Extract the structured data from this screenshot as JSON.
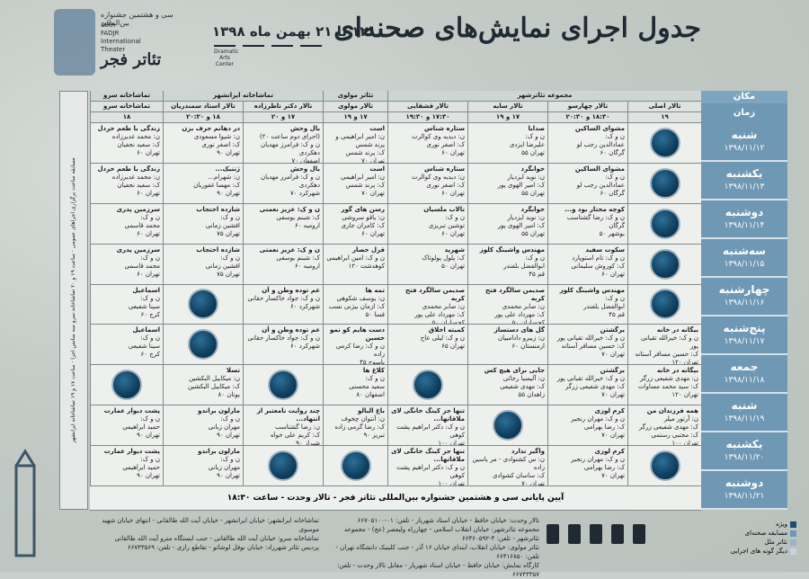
{
  "header": {
    "title": "جدول اجرای نمایش‌های صحنه‌ای",
    "dates": "۱۲ تا ۲۱ بهمن ماه ۱۳۹۸",
    "festival_number": "سی و هشتمین",
    "festival_fa_sub": "جشنواره بین‌المللی",
    "festival_en": [
      "38th",
      "FADJR",
      "International",
      "Theater",
      "Festival"
    ],
    "festival_fa": "تئاتر فجر",
    "partner_logos": [
      "Dramatic Arts Center",
      "",
      "",
      ""
    ]
  },
  "columns": {
    "place_label": "مکان",
    "time_label": "زمان",
    "venues": [
      "مجموعه تئاترشهر",
      "تئاتر مولوی",
      "تماشاخانه ایرانشهر",
      "تماشاخانه سرو"
    ],
    "halls": [
      "تالار اصلی",
      "تالار چهارسو",
      "تالار سایه",
      "تالار قشقایی",
      "تالار مولوی",
      "تالار دکتر ناظرزاده",
      "تالار استاد سمندریان",
      "تماشاخانه سرو"
    ],
    "times": [
      "۱۹",
      "۱۸:۳۰ و ۲۰:۳۰",
      "۱۷ و ۱۹",
      "۱۷:۳۰ و ۱۹:۳۰",
      "۱۷ و ۱۹",
      "۱۷ و ۲۰",
      "۱۸ و ۲۰:۳۰",
      "۱۸"
    ]
  },
  "days": [
    {
      "name": "شنبه",
      "date": "۱۳۹۸/۱۱/۱۲"
    },
    {
      "name": "یکشنبه",
      "date": "۱۳۹۸/۱۱/۱۳"
    },
    {
      "name": "دوشنبه",
      "date": "۱۳۹۸/۱۱/۱۴"
    },
    {
      "name": "سه‌شنبه",
      "date": "۱۳۹۸/۱۱/۱۵"
    },
    {
      "name": "چهارشنبه",
      "date": "۱۳۹۸/۱۱/۱۶"
    },
    {
      "name": "پنج‌شنبه",
      "date": "۱۳۹۸/۱۱/۱۷"
    },
    {
      "name": "جمعه",
      "date": "۱۳۹۸/۱۱/۱۸"
    },
    {
      "name": "شنبه",
      "date": "۱۳۹۸/۱۱/۱۹"
    },
    {
      "name": "یکشنبه",
      "date": "۱۳۹۸/۱۱/۲۰"
    },
    {
      "name": "دوشنبه",
      "date": "۱۳۹۸/۱۱/۲۱"
    }
  ],
  "schedule": [
    [
      {
        "empty": true
      },
      {
        "text": "مشوای الساکین\nن و ک:\nعمادالدین رجب لو\nگرگان ۶۰"
      },
      {
        "text": "صدایا\nن و ک:\nعلیرضا ایزدی\nتهران ۵۵"
      },
      {
        "text": "ستاره شناس\nن: دیدیه وی کوالرت\nک: اصغر نوری\nتهران ۶۰"
      },
      {
        "text": "است\nن: امیر ابراهیمی و پرند شمس\nک: پرند شمس\nتهران ۷۰"
      },
      {
        "text": "بال وحش\n(اجرای دوم ساعت ۲۰)\nن و ک: فرامرز مهدیان دهکردی\nاصفهان ۷۰"
      },
      {
        "text": "در دهانم حرف بزن\nن: شیوا مسعودی\nک: اصغر نوری\nتهران ۹۰"
      },
      {
        "text": "زندگی با طعم خردل\nن: محمد غدیرزاده\nک: سعید نجفیان\nتهران ۶۰"
      }
    ],
    [
      {
        "empty": true
      },
      {
        "text": "مشوای الساکین\nن و ک:\nعمادالدین رجب لو\nگرگان ۶۰"
      },
      {
        "text": "خوابگرد\nن: نوید ایزدیار\nک: امیر الهوی پور\nتهران ۵۵"
      },
      {
        "text": "ستاره شناس\nن: دیدیه وی کوالرت\nک: اصغر نوری\nتهران ۶۰"
      },
      {
        "text": "است\nن: امیر ابراهیمی\nک: پرند شمس\nتهران ۷۰"
      },
      {
        "text": "بال وحش\nن و ک: فرامرز مهدیان دهکردی\nشهرکرد ۷۰"
      },
      {
        "text": "ژتنیک...\nن: شهرام...\nک: مهسا غفوریان\nتهران ۹۰"
      },
      {
        "text": "زندگی با طعم خردل\nن: محمد غدیرزاده\nک: سعید نجفیان\nتهران ۶۰"
      }
    ],
    [
      {
        "empty": true
      },
      {
        "text": "کوچه مختار بود و...\nن و ک: رضا گشتاسب\nگرگان\nبوشهر ۵۰"
      },
      {
        "text": "خوابگرد\nن: نوید ایزدیار\nک: امیر الهوی پور\nتهران ۵۵"
      },
      {
        "text": "تالاب ملسیان\nن و ک:\nتوشین تبریزی\nتهران ۶۰"
      },
      {
        "text": "رسن های گور\nن: یاقو سروشی\nک: کامران جاری\nتهران ۶۰"
      },
      {
        "text": "ن و ک: عزیز نعمتی\nک: شبنم یوسفی\nارومیه ۶۰"
      },
      {
        "text": "شازده احتجاب\nن و ک:\nافشین زمانی\nتهران ۷۵"
      },
      {
        "text": "سرزمین پدری\nن و ک:\nمحمد قاسمی\nتهران ۶۰"
      }
    ],
    [
      {
        "empty": true
      },
      {
        "text": "سکوت سفید\nن و ک: تام استوپارد\nک: کوروش سلیمانی\nتهران ۶۰"
      },
      {
        "text": "مهندس واشینگ کلوز\nن و ک:\nابوالفضل بلفندر\nقم ۴۵"
      },
      {
        "text": "شهرپد\nک: پلول پولوتاک\nتهران ۵۰"
      },
      {
        "text": "قزل حصار\nن و ک: امین ابراهیمی\nکوهدشت ۱۲۰"
      },
      {
        "text": "ن و ک: عزیز نعمتی\nک: شبنم یوسفی\nارومیه ۶۰"
      },
      {
        "text": "شازده احتجاب\nن و ک:\nافشین زمانی\nتهران ۷۵"
      },
      {
        "text": "سرزمین پدری\nن و ک:\nمحمد قاسمی\nتهران ۶۰"
      }
    ],
    [
      {
        "empty": true
      },
      {
        "text": "مهندس واشینگ کلوز\nن و ک:\nابوالفضل بلفندر\nقم ۴۵"
      },
      {
        "text": "صدیمن سالگرد فتح کربه\nن: صابر محمدی\nک: مهرداد علی پور\nکچساران ۵۰"
      },
      {
        "text": "صدیمن سالگرد فتح کربه\nن: صابر محمدی\nک: مهرداد علی پور\nکچساران ۵۰"
      },
      {
        "text": "تمه ها\nن: یوسف شکوهی\nک: ازمان بیژنی نسب\nفسا ۵۰"
      },
      {
        "text": "غم توده وطن و اَن\nن و ک: جواد خاکسار حقانی\nشهرکرد ۶۰"
      },
      {
        "empty": true
      },
      {
        "text": "اسماعیل\nن و ک:\nسینا شفیعی\nکرج ۶۰"
      }
    ],
    [
      {
        "text": "بیگانه در خانه\nن و ک: خیرالله تقیانی پور\nک: حسین مسافر آستانه\nتهران ۱۲۰"
      },
      {
        "text": "برگشتن\nن و ک: خیرالله تقیانی پور\nک: حسین مسافر آستانه\nتهران ۷۰"
      },
      {
        "text": "گل های دستساز\nن: زبیرو دادامییان\nارمنستان ۶۰"
      },
      {
        "text": "کمیته اخلاق\nن و ک: لیلی عاج\nتهران ۶۵"
      },
      {
        "text": "دست هایم کو نمو حسین\nن و ک: رضا کرمی زاده\nیاسوج ۴۵"
      },
      {
        "text": "غم توده وطن و اَن\nن و ک: جواد خاکسار حقانی\nشهرکرد ۶۰"
      },
      {
        "empty": true
      },
      {
        "text": "اسماعیل\nن و ک:\nسینا شفیعی\nکرج ۶۰"
      }
    ],
    [
      {
        "text": "بیگانه در خانه\nن: مهدی شفیعی زرگر\nک: سید محمد مساوات\nتهران ۱۲۰"
      },
      {
        "text": "برگشتن\nن و ک: خیرالله تقیانی پور\nک: مهدی شفیعی زرگر\nتهران ۷۰"
      },
      {
        "text": "جایی برای هیچ کس\nن: آلیسیا رجائی\nک: مهدی شفیعی\nزاهدان ۵۵"
      },
      {
        "empty": true
      },
      {
        "text": "کلاغ ها\nن و ک:\nسعید محسنی\nاصفهان ۸۰"
      },
      {
        "empty": true
      },
      {
        "text": "تسلا\nن: میکاییل البکشین\nک: میکاییل البکشین\nیونان ۸۰"
      },
      {
        "empty": true
      }
    ],
    [
      {
        "text": "همه فرزندان من\nن: آرتور میلر\nک: مهدی شفیعی زرگر\nک: مجتبی رستمی\nتهران ۱۰۰"
      },
      {
        "text": "کرم لوزی\nن و ک: مهران رنجبر\nک: رضا بهرامی\nتهران ۷۰"
      },
      {
        "empty": true
      },
      {
        "text": "تنها جز کینگ خانگی لای ملاقاتها...\nن و ک: دکتر ابراهیم پشت کوهی\nتهران ۱۰۰"
      },
      {
        "text": "باغ البالو\nن: آنتوان چخوف\nک: رضا گرمی زاده\nتبریز ۹۰"
      },
      {
        "text": "چند روایت نامعتبر از انتهاد...\nن: رضا گشتاسب\nک: کریم علی خواه\nشیراز ۹۰"
      },
      {
        "text": "مارلون براندو\nن و ک:\nمهران زبانی\nتهران ۹۰"
      },
      {
        "text": "پشت دیوار عمارت\nن و ک:\nحمید ابراهیمی\nتهران ۹۰"
      }
    ],
    [
      {
        "empty": true
      },
      {
        "text": "کرم لوزی\nن و ک: مهران رنجبر\nک: رضا بهرامی\nتهران ۷۰"
      },
      {
        "text": "واگیر ندارد\nن: س کشتوادی - مر یاسین زاده\nک: ساسان کشوادی\nتهران ۷۰"
      },
      {
        "text": "تنها جز کینگ خانگی لای ملاقاتها...\nن و ک: دکتر ابراهیم پشت کوهی\nتهران ۱۰۰"
      },
      {
        "empty": true
      },
      {
        "empty": true
      },
      {
        "text": "مارلون براندو\nن و ک:\nمهران زبانی\nتهران ۹۰"
      },
      {
        "text": "پشت دیوار عمارت\nن و ک:\nحمید ابراهیمی\nتهران ۹۰"
      }
    ]
  ],
  "closing": "آیین پایانی سی و هشتمین جشنواره بین‌المللی تئاتر فجر - تالار وحدت - ساعت ۱۸:۳۰",
  "side_note": "مسابقه ساعت برگزاری اجراهای عمومی · ساعت ۱۹ و ۲۰ تماشاخانه سرو سه سانس اجرا · ساعت ۱۷ و ۱۹ تماشاخانه ایرانشهر",
  "footer": {
    "col1": [
      "تالار وحدت: خیابان حافظ - خیابان استاد شهریار - تلفن: ۰۱-۶۶۷۰۵۱۰۰",
      "مجموعه تئاترشهر: خیابان انقلاب اسلامی - چهارراه ولیعصر (عج) - مجموعه تئاترشهر - تلفن: ۴-۶۶۴۶۰۵۹۲",
      "تئاتر مولوی: خیابان انقلاب، ابتدای خیابان ۱۶ آذر - جنب کلینیک دانشگاه تهران - تلفن: ۶۶۴۱۶۸۵۰",
      "کارگاه نمایش: خیابان حافظ - خیابان استاد شهریار - مقابل تالار وحدت - تلفن: ۶۶۷۴۳۳۵۷"
    ],
    "col2": [
      "تماشاخانه ایرانشهر: خیابان ایرانشهر - خیابان آیت الله طالقانی - انتهای خیابان شهید موسوی",
      "تماشاخانه سرو: خیابان آیت الله طالقانی - جنب ایستگاه مترو آیت الله طالقانی",
      "پردیس تئاتر شهرزاد: خیابان نوفل لوشاتو - تقاطع رازی - تلفن: ۶۶۷۳۳۵۶۹"
    ]
  },
  "legend": [
    {
      "label": "ویژه",
      "color": "#1c4d72"
    },
    {
      "label": "مسابقه صحنه‌ای",
      "color": "#6f98b5"
    },
    {
      "label": "تئاتر ملل",
      "color": "#9bb4c4"
    },
    {
      "label": "دیگر گونه های اجرایی",
      "color": "#c7d4dc"
    }
  ]
}
